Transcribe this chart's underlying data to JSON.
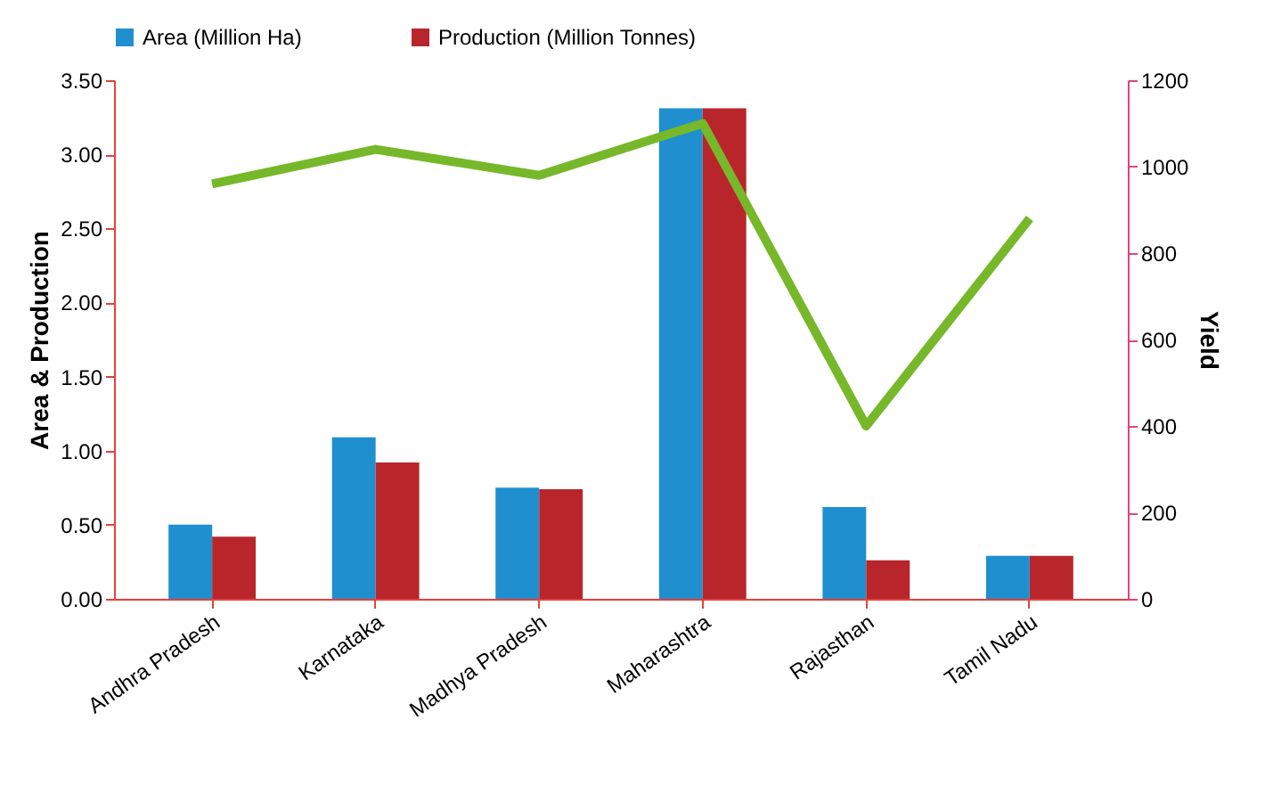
{
  "chart_data": {
    "type": "bar",
    "ylabel": "Area & Production",
    "y2label": "Yield",
    "categories": [
      "Andhra Pradesh",
      "Karnataka",
      "Madhya Pradesh",
      "Maharashtra",
      "Rajasthan",
      "Tamil Nadu"
    ],
    "series": [
      {
        "name": "Area (Million Ha)",
        "color": "#1f8fd0",
        "values": [
          0.5,
          1.09,
          0.75,
          3.31,
          0.62,
          0.29
        ]
      },
      {
        "name": "Production (Million Tonnes)",
        "color": "#b8262b",
        "values": [
          0.42,
          0.92,
          0.74,
          3.31,
          0.26,
          0.29
        ]
      },
      {
        "type": "line",
        "axis": "y2",
        "color": "#76b82a",
        "values": [
          960,
          1040,
          980,
          1100,
          400,
          880
        ]
      }
    ],
    "ylim": [
      0,
      3.5
    ],
    "yticks": [
      {
        "value": 0,
        "label": "0.00"
      },
      {
        "value": 0.5,
        "label": "0.50"
      },
      {
        "value": 1,
        "label": "1.00"
      },
      {
        "value": 1.5,
        "label": "1.50"
      },
      {
        "value": 2,
        "label": "2.00"
      },
      {
        "value": 2.5,
        "label": "2.50"
      },
      {
        "value": 3,
        "label": "3.00"
      },
      {
        "value": 3.5,
        "label": "3.50"
      }
    ],
    "y2lim": [
      0,
      1200
    ],
    "y2ticks": [
      0,
      200,
      400,
      600,
      800,
      1000,
      1200
    ],
    "grid": false,
    "legend": "top",
    "marker": "none"
  }
}
